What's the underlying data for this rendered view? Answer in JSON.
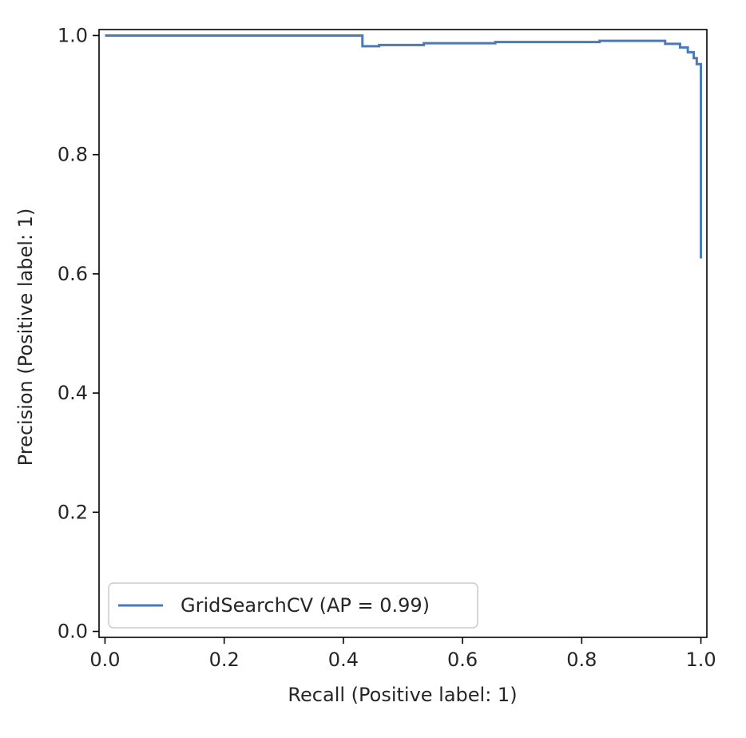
{
  "chart_data": {
    "type": "line",
    "title": "",
    "xlabel": "Recall (Positive label: 1)",
    "ylabel": "Precision (Positive label: 1)",
    "xlim": [
      -0.01,
      1.01
    ],
    "ylim": [
      -0.01,
      1.01
    ],
    "xticks": [
      "0.0",
      "0.2",
      "0.4",
      "0.6",
      "0.8",
      "1.0"
    ],
    "yticks": [
      "0.0",
      "0.2",
      "0.4",
      "0.6",
      "0.8",
      "1.0"
    ],
    "grid": false,
    "legend_position": "lower-left",
    "series": [
      {
        "name": "GridSearchCV (AP = 0.99)",
        "color": "#4a7bb7",
        "drawstyle": "steps-post",
        "points": [
          [
            0.0,
            1.0
          ],
          [
            0.432,
            1.0
          ],
          [
            0.432,
            0.982
          ],
          [
            0.46,
            0.982
          ],
          [
            0.46,
            0.984
          ],
          [
            0.535,
            0.984
          ],
          [
            0.535,
            0.987
          ],
          [
            0.655,
            0.987
          ],
          [
            0.655,
            0.989
          ],
          [
            0.83,
            0.989
          ],
          [
            0.83,
            0.991
          ],
          [
            0.94,
            0.991
          ],
          [
            0.94,
            0.986
          ],
          [
            0.965,
            0.986
          ],
          [
            0.965,
            0.98
          ],
          [
            0.978,
            0.98
          ],
          [
            0.978,
            0.972
          ],
          [
            0.988,
            0.972
          ],
          [
            0.988,
            0.962
          ],
          [
            0.993,
            0.962
          ],
          [
            0.993,
            0.952
          ],
          [
            1.0,
            0.952
          ],
          [
            1.0,
            0.626
          ]
        ]
      }
    ]
  }
}
